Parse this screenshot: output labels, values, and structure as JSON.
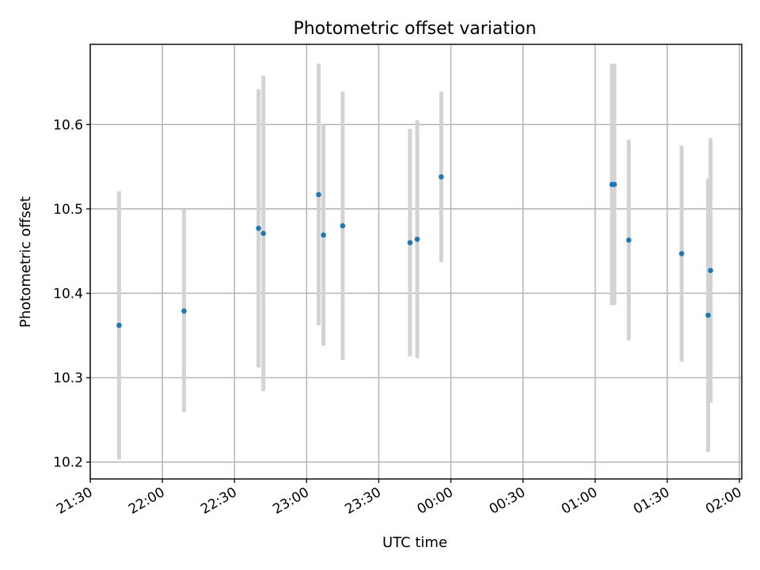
{
  "chart_data": {
    "type": "scatter",
    "title": "Photometric offset variation",
    "xlabel": "UTC time",
    "ylabel": "Photometric offset",
    "x_ticks": [
      "21:30",
      "22:00",
      "22:30",
      "23:00",
      "23:30",
      "00:00",
      "00:30",
      "01:00",
      "01:30",
      "02:00"
    ],
    "y_ticks": [
      "10.2",
      "10.3",
      "10.4",
      "10.5",
      "10.6"
    ],
    "xlim": [
      "21:30",
      "02:01"
    ],
    "ylim": [
      10.18,
      10.695
    ],
    "grid": true,
    "point_color": "#1f77b4",
    "errorbar_color": "#d3d3d3",
    "points": [
      {
        "x": "21:42",
        "y": 10.362,
        "yerr": 0.159
      },
      {
        "x": "22:09",
        "y": 10.379,
        "yerr": 0.12
      },
      {
        "x": "22:40",
        "y": 10.477,
        "yerr": 0.165
      },
      {
        "x": "22:42",
        "y": 10.471,
        "yerr": 0.187
      },
      {
        "x": "23:05",
        "y": 10.517,
        "yerr": 0.155
      },
      {
        "x": "23:07",
        "y": 10.469,
        "yerr": 0.131
      },
      {
        "x": "23:15",
        "y": 10.48,
        "yerr": 0.159
      },
      {
        "x": "23:43",
        "y": 10.46,
        "yerr": 0.135
      },
      {
        "x": "23:46",
        "y": 10.464,
        "yerr": 0.141
      },
      {
        "x": "23:56",
        "y": 10.538,
        "yerr": 0.101
      },
      {
        "x": "01:07",
        "y": 10.529,
        "yerr": 0.143
      },
      {
        "x": "01:08",
        "y": 10.529,
        "yerr": 0.143
      },
      {
        "x": "01:14",
        "y": 10.463,
        "yerr": 0.119
      },
      {
        "x": "01:36",
        "y": 10.447,
        "yerr": 0.128
      },
      {
        "x": "01:47",
        "y": 10.374,
        "yerr": 0.162
      },
      {
        "x": "01:48",
        "y": 10.427,
        "yerr": 0.157
      }
    ]
  }
}
